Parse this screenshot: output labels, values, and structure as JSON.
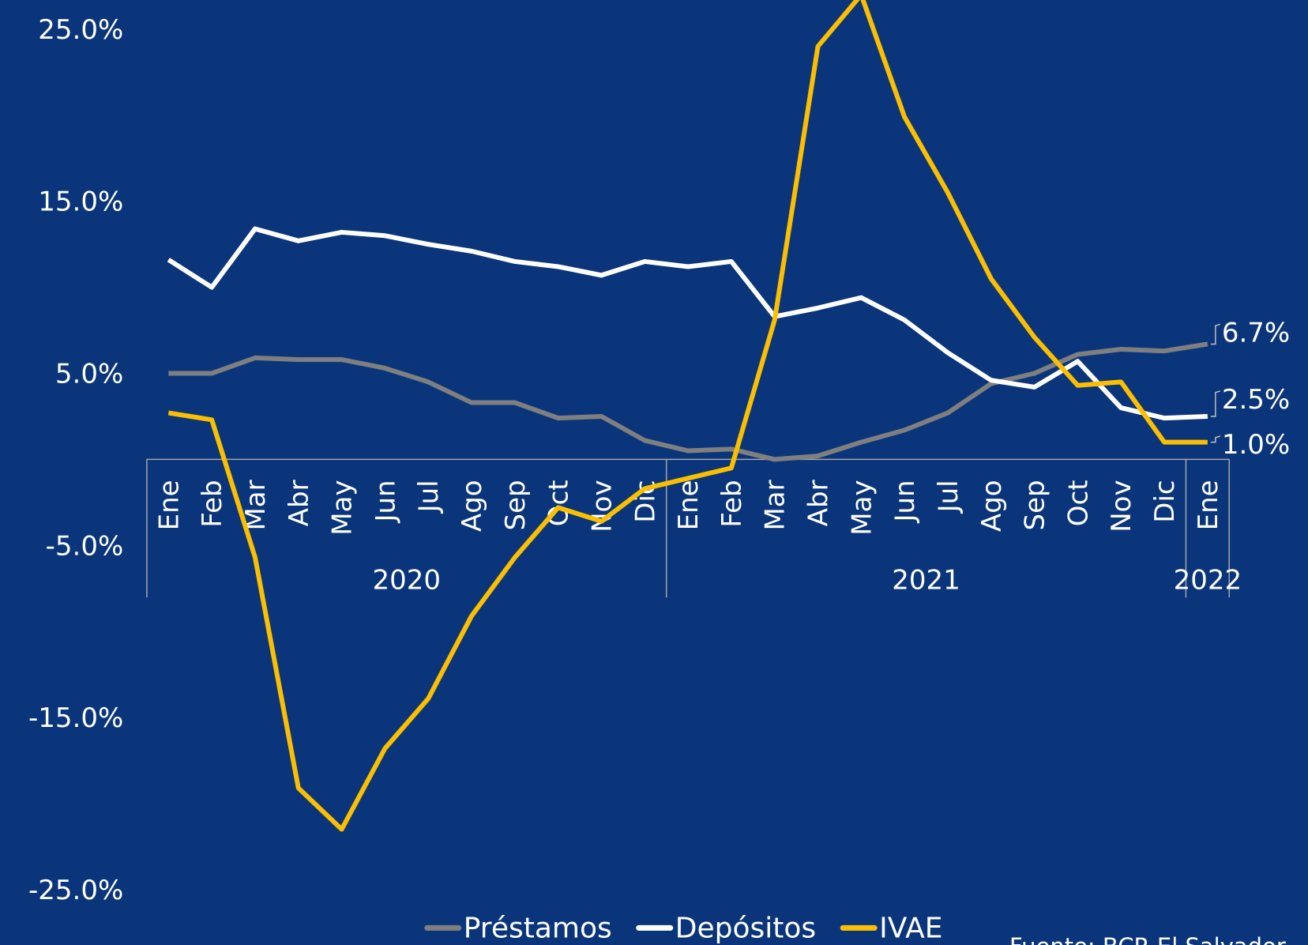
{
  "chart_data": {
    "type": "line",
    "categories": [
      "Ene",
      "Feb",
      "Mar",
      "Abr",
      "May",
      "Jun",
      "Jul",
      "Ago",
      "Sep",
      "Oct",
      "Nov",
      "Dic",
      "Ene",
      "Feb",
      "Mar",
      "Abr",
      "May",
      "Jun",
      "Jul",
      "Ago",
      "Sep",
      "Oct",
      "Nov",
      "Dic",
      "Ene"
    ],
    "groups": [
      {
        "label": "2020",
        "count": 12
      },
      {
        "label": "2021",
        "count": 12
      },
      {
        "label": "2022",
        "count": 1
      }
    ],
    "series": [
      {
        "name": "Préstamos",
        "color": "#7f7f7f",
        "values": [
          5.0,
          5.0,
          5.9,
          5.8,
          5.8,
          5.3,
          4.5,
          3.3,
          3.3,
          2.4,
          2.5,
          1.1,
          0.5,
          0.6,
          0.0,
          0.2,
          1.0,
          1.7,
          2.7,
          4.4,
          5.0,
          6.1,
          6.4,
          6.3,
          6.7
        ],
        "end_label": "6.7%"
      },
      {
        "name": "Depósitos",
        "color": "#ffffff",
        "values": [
          11.6,
          10.0,
          13.4,
          12.7,
          13.2,
          13.0,
          12.5,
          12.1,
          11.5,
          11.2,
          10.7,
          11.5,
          11.2,
          11.5,
          8.3,
          8.8,
          9.4,
          8.1,
          6.2,
          4.6,
          4.2,
          5.7,
          3.0,
          2.4,
          2.5
        ],
        "end_label": "2.5%"
      },
      {
        "name": "IVAE",
        "color": "#fbbf00",
        "values": [
          2.7,
          2.3,
          -5.7,
          -19.1,
          -21.5,
          -16.8,
          -13.9,
          -9.1,
          -5.7,
          -2.8,
          -3.6,
          -1.7,
          -1.1,
          -0.5,
          8.1,
          24.0,
          27.0,
          19.9,
          15.5,
          10.5,
          7.1,
          4.3,
          4.5,
          1.0,
          1.0
        ],
        "end_label": "1.0%"
      }
    ],
    "ylim": [
      -25,
      25
    ],
    "yticks": [
      {
        "value": -25,
        "label": "-25.0%"
      },
      {
        "value": -15,
        "label": "-15.0%"
      },
      {
        "value": -5,
        "label": "-5.0%"
      },
      {
        "value": 5,
        "label": "5.0%"
      },
      {
        "value": 15,
        "label": "15.0%"
      },
      {
        "value": 25,
        "label": "25.0%"
      }
    ],
    "source": "Fuente: BCR El Salvador"
  }
}
